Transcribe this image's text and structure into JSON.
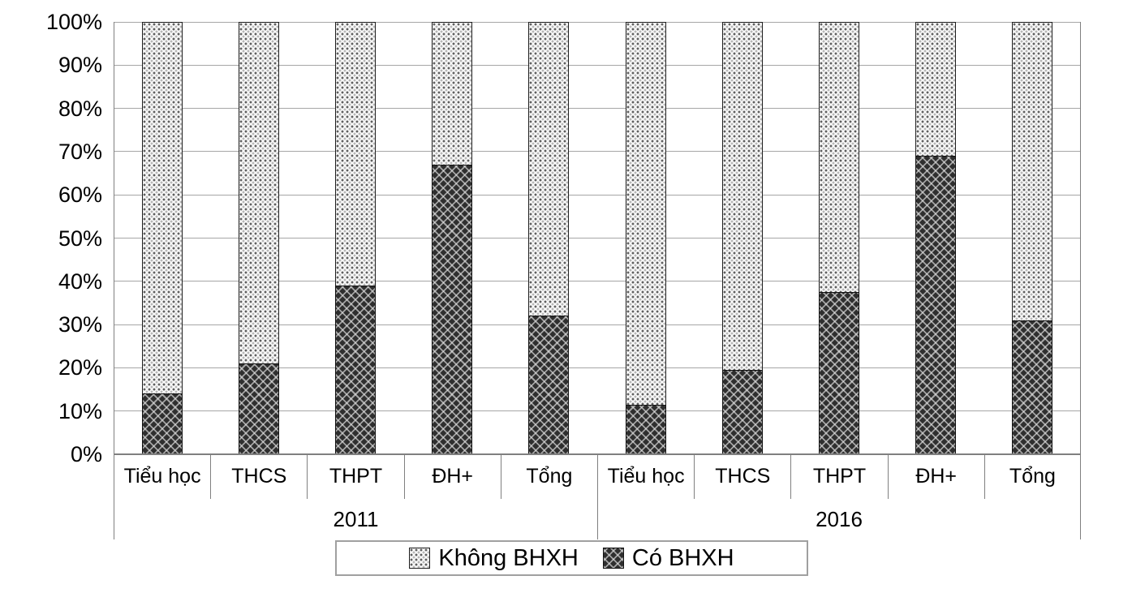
{
  "chart_data": {
    "type": "bar",
    "subtype": "stacked-100-percent",
    "title": "",
    "categories": [
      "Tiểu học",
      "THCS",
      "THPT",
      "ĐH+",
      "Tổng",
      "Tiểu học",
      "THCS",
      "THPT",
      "ĐH+",
      "Tổng"
    ],
    "groups": [
      {
        "label": "2011",
        "span": 5
      },
      {
        "label": "2016",
        "span": 5
      }
    ],
    "series": [
      {
        "name": "Có BHXH",
        "stack_position": "bottom",
        "pattern": "dark-trellis",
        "values": [
          14,
          21,
          39,
          67,
          32,
          11.5,
          19.5,
          37.5,
          69,
          31
        ]
      },
      {
        "name": "Không BHXH",
        "stack_position": "top",
        "pattern": "light-dotted",
        "values": [
          86,
          79,
          61,
          33,
          68,
          88.5,
          80.5,
          62.5,
          31,
          69
        ]
      }
    ],
    "y_axis": {
      "ticks": [
        "0%",
        "10%",
        "20%",
        "30%",
        "40%",
        "50%",
        "60%",
        "70%",
        "80%",
        "90%",
        "100%"
      ],
      "min": 0,
      "max": 100,
      "grid": true
    },
    "legend_position": "bottom"
  },
  "legend": {
    "items": [
      {
        "label": "Không BHXH",
        "swatch": "light-dotted-pattern"
      },
      {
        "label": "Có BHXH",
        "swatch": "dark-trellis-pattern"
      }
    ]
  },
  "colors": {
    "background": "#ffffff",
    "gridline": "#a6a6a6",
    "axis": "#808080",
    "text": "#000000",
    "bar_border": "#1f1f1f",
    "light_pattern_base": "#fcfcfc",
    "light_pattern_dot": "#5f5f5f",
    "dark_pattern_base": "#2f2f2f",
    "dark_pattern_line": "#e1e1e1",
    "legend_border": "#a0a0a0"
  }
}
